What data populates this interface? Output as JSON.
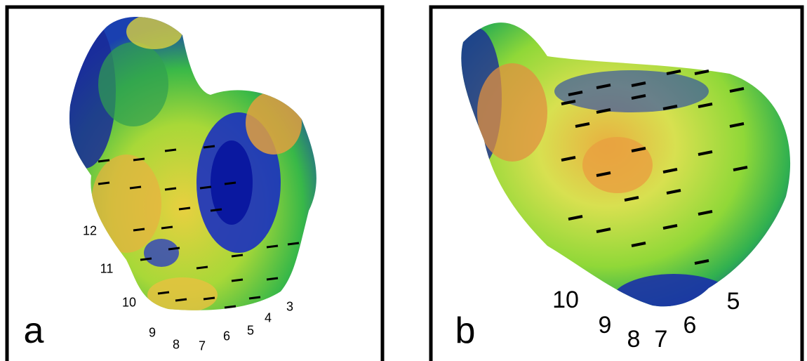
{
  "panels": [
    {
      "label": "a",
      "markers": [
        "12",
        "11",
        "10",
        "9",
        "8",
        "7",
        "6",
        "5",
        "4",
        "3"
      ]
    },
    {
      "label": "b",
      "markers": [
        "10",
        "9",
        "8",
        "7",
        "6",
        "5"
      ]
    }
  ]
}
